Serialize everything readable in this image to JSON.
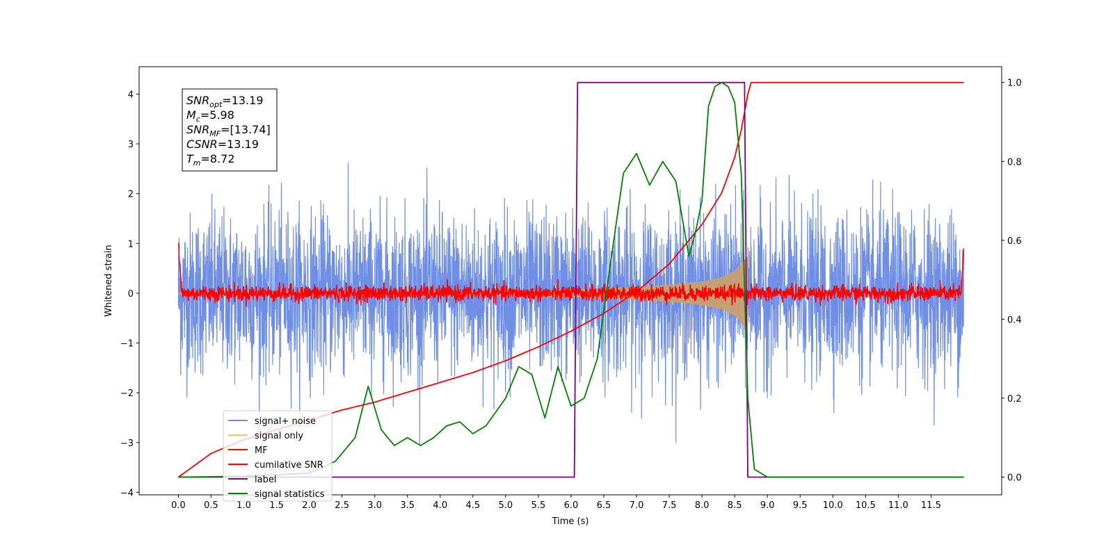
{
  "chart_data": {
    "type": "line",
    "title": "",
    "xlabel": "Time (s)",
    "ylabel": "Whitened strain",
    "ylabel_right": "",
    "xlim": [
      -0.6,
      12.58
    ],
    "ylim": [
      -4.05,
      4.55
    ],
    "ylim_right": [
      -0.045,
      1.04
    ],
    "x_ticks": [
      0.0,
      0.5,
      1.0,
      1.5,
      2.0,
      2.5,
      3.0,
      3.5,
      4.0,
      4.5,
      5.0,
      5.5,
      6.0,
      6.5,
      7.0,
      7.5,
      8.0,
      8.5,
      9.0,
      9.5,
      10.0,
      10.5,
      11.0,
      11.5
    ],
    "x_tick_labels": [
      "0.0",
      "0.5",
      "1.0",
      "1.5",
      "2.0",
      "2.5",
      "3.0",
      "3.5",
      "4.0",
      "4.5",
      "5.0",
      "5.5",
      "6.0",
      "6.5",
      "7.0",
      "7.5",
      "8.0",
      "8.5",
      "9.0",
      "9.5",
      "10.0",
      "10.5",
      "11.0",
      "11.5"
    ],
    "y_ticks": [
      -4,
      -3,
      -2,
      -1,
      0,
      1,
      2,
      3,
      4
    ],
    "y_tick_labels": [
      "−4",
      "−3",
      "−2",
      "−1",
      "0",
      "1",
      "2",
      "3",
      "4"
    ],
    "y_right_ticks": [
      0.0,
      0.2,
      0.4,
      0.6,
      0.8,
      1.0
    ],
    "y_right_tick_labels": [
      "0.0",
      "0.2",
      "0.4",
      "0.6",
      "0.8",
      "1.0"
    ],
    "legend_position": "lower-left",
    "grid": false,
    "series": [
      {
        "name": "signal+ noise",
        "axis": "left",
        "color": "#6f8fe6",
        "style": "noise band",
        "t_range": [
          0.0,
          12.0
        ],
        "amplitude": 0.8,
        "approx_peak": [
          2.6,
          -3.0
        ]
      },
      {
        "name": "signal only",
        "axis": "left",
        "color": "#f5c26b",
        "style": "chirp envelope",
        "x": [
          0.0,
          4.0,
          5.0,
          6.0,
          6.5,
          7.0,
          7.5,
          8.0,
          8.3,
          8.5,
          8.6,
          8.7
        ],
        "y": [
          0.02,
          0.04,
          0.05,
          0.08,
          0.1,
          0.13,
          0.17,
          0.24,
          0.32,
          0.45,
          0.6,
          0.75
        ]
      },
      {
        "name": "MF",
        "axis": "left",
        "color": "#ff0000",
        "style": "noise band",
        "t_range": [
          0.0,
          12.0
        ],
        "amplitude": 0.08
      },
      {
        "name": "cumilative SNR",
        "axis": "right",
        "color": "#ff0000",
        "x": [
          0.0,
          0.5,
          1.0,
          1.5,
          2.0,
          2.5,
          3.0,
          3.5,
          4.0,
          4.5,
          5.0,
          5.5,
          6.0,
          6.5,
          7.0,
          7.5,
          8.0,
          8.3,
          8.5,
          8.6,
          8.7,
          8.72,
          9.0,
          10.0,
          11.0,
          12.0
        ],
        "y": [
          0.0,
          0.06,
          0.095,
          0.12,
          0.145,
          0.17,
          0.19,
          0.215,
          0.24,
          0.265,
          0.295,
          0.33,
          0.37,
          0.415,
          0.47,
          0.54,
          0.64,
          0.72,
          0.81,
          0.88,
          0.97,
          1.0,
          1.0,
          1.0,
          1.0,
          1.0
        ]
      },
      {
        "name": "label",
        "axis": "right",
        "color": "#800080",
        "x": [
          0.0,
          6.05,
          6.1,
          8.65,
          8.7,
          12.0
        ],
        "y": [
          0.0,
          0.0,
          1.0,
          1.0,
          0.0,
          0.0
        ]
      },
      {
        "name": "signal statistics",
        "axis": "right",
        "color": "#008000",
        "x": [
          0.0,
          1.0,
          2.0,
          2.4,
          2.7,
          2.9,
          3.1,
          3.3,
          3.5,
          3.7,
          3.9,
          4.1,
          4.3,
          4.5,
          4.7,
          5.0,
          5.2,
          5.4,
          5.6,
          5.8,
          6.0,
          6.2,
          6.4,
          6.6,
          6.8,
          7.0,
          7.2,
          7.4,
          7.6,
          7.8,
          7.9,
          8.0,
          8.1,
          8.2,
          8.3,
          8.4,
          8.5,
          8.6,
          8.7,
          8.8,
          9.0,
          12.0
        ],
        "y": [
          0.0,
          0.002,
          0.01,
          0.04,
          0.1,
          0.23,
          0.12,
          0.08,
          0.1,
          0.08,
          0.1,
          0.13,
          0.14,
          0.11,
          0.13,
          0.2,
          0.28,
          0.26,
          0.15,
          0.28,
          0.18,
          0.2,
          0.3,
          0.54,
          0.77,
          0.82,
          0.74,
          0.8,
          0.75,
          0.56,
          0.62,
          0.7,
          0.94,
          0.99,
          1.0,
          0.99,
          0.95,
          0.77,
          0.2,
          0.02,
          0.0,
          0.0
        ]
      }
    ],
    "annotation": [
      {
        "main": "SNR",
        "sub": "opt",
        "value": "=13.19"
      },
      {
        "main": "M",
        "sub": "c",
        "value": "=5.98"
      },
      {
        "main": "SNR",
        "sub": "MF",
        "value": "=[13.74]"
      },
      {
        "main": "CSNR",
        "sub": "",
        "value": "=13.19"
      },
      {
        "main": "T",
        "sub": "m",
        "value": "=8.72"
      }
    ]
  }
}
